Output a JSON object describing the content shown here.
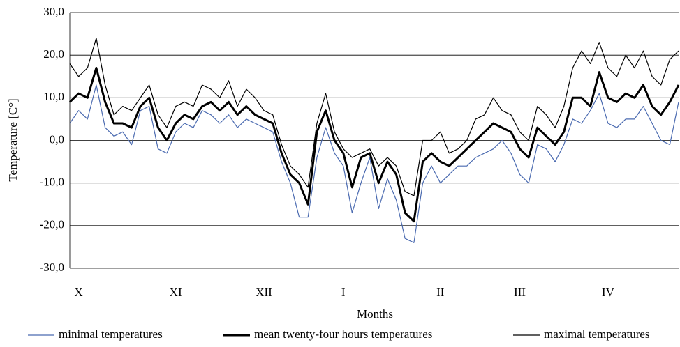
{
  "chart_data": {
    "type": "line",
    "y_label": "Temperature [C°]",
    "x_label": "Months",
    "categories": [
      null,
      "X",
      null,
      null,
      null,
      null,
      null,
      null,
      null,
      null,
      null,
      null,
      "XI",
      null,
      null,
      null,
      null,
      null,
      null,
      null,
      null,
      null,
      "XII",
      null,
      null,
      null,
      null,
      null,
      null,
      null,
      null,
      "I",
      null,
      null,
      null,
      null,
      null,
      null,
      null,
      null,
      null,
      null,
      "II",
      null,
      null,
      null,
      null,
      null,
      null,
      null,
      null,
      "III",
      null,
      null,
      null,
      null,
      null,
      null,
      null,
      null,
      null,
      "IV",
      null,
      null,
      null,
      null,
      null,
      null,
      null,
      null
    ],
    "ylim": [
      -30,
      30
    ],
    "yticks": [
      {
        "value": -30,
        "label": "-30,0"
      },
      {
        "value": -20,
        "label": "-20,0"
      },
      {
        "value": -10,
        "label": "-10,0"
      },
      {
        "value": 0,
        "label": "0,0"
      },
      {
        "value": 10,
        "label": "10,0"
      },
      {
        "value": 20,
        "label": "20,0"
      },
      {
        "value": 30,
        "label": "30,0"
      }
    ],
    "grid": true,
    "legend": "bottom",
    "series": [
      {
        "name": "minimal temperatures",
        "color": "#4a6ab0",
        "values": [
          4,
          7,
          5,
          13,
          3,
          1,
          2,
          -1,
          7,
          8,
          -2,
          -3,
          2,
          4,
          3,
          7,
          6,
          4,
          6,
          3,
          5,
          4,
          3,
          2,
          -5,
          -10,
          -18,
          -18,
          -4,
          3,
          -3,
          -6,
          -17,
          -10,
          -4,
          -16,
          -9,
          -14,
          -23,
          -24,
          -10,
          -6,
          -10,
          -8,
          -6,
          -6,
          -4,
          -3,
          -2,
          0,
          -3,
          -8,
          -10,
          -1,
          -2,
          -5,
          -1,
          5,
          4,
          7,
          11,
          4,
          3,
          5,
          5,
          8,
          4,
          0,
          -1,
          9
        ]
      },
      {
        "name": "mean twenty-four hours temperatures",
        "color": "#000000",
        "values": [
          9,
          11,
          10,
          17,
          9,
          4,
          4,
          3,
          8,
          10,
          3,
          0,
          4,
          6,
          5,
          8,
          9,
          7,
          9,
          6,
          8,
          6,
          5,
          4,
          -3,
          -8,
          -10,
          -15,
          2,
          7,
          0,
          -3,
          -11,
          -4,
          -3,
          -10,
          -5,
          -8,
          -17,
          -19,
          -5,
          -3,
          -5,
          -6,
          -4,
          -2,
          0,
          2,
          4,
          3,
          2,
          -2,
          -4,
          3,
          1,
          -1,
          2,
          10,
          10,
          8,
          16,
          10,
          9,
          11,
          10,
          13,
          8,
          6,
          9,
          13
        ]
      },
      {
        "name": "maximal temperatures",
        "color": "#000000",
        "values": [
          18,
          15,
          17,
          24,
          13,
          6,
          8,
          7,
          10,
          13,
          6,
          3,
          8,
          9,
          8,
          13,
          12,
          10,
          14,
          8,
          12,
          10,
          7,
          6,
          -1,
          -6,
          -8,
          -11,
          4,
          11,
          2,
          -2,
          -4,
          -3,
          -2,
          -6,
          -4,
          -6,
          -12,
          -13,
          0,
          0,
          2,
          -3,
          -2,
          0,
          5,
          6,
          10,
          7,
          6,
          2,
          0,
          8,
          6,
          3,
          8,
          17,
          21,
          18,
          23,
          17,
          15,
          20,
          17,
          21,
          15,
          13,
          19,
          21
        ]
      }
    ]
  }
}
